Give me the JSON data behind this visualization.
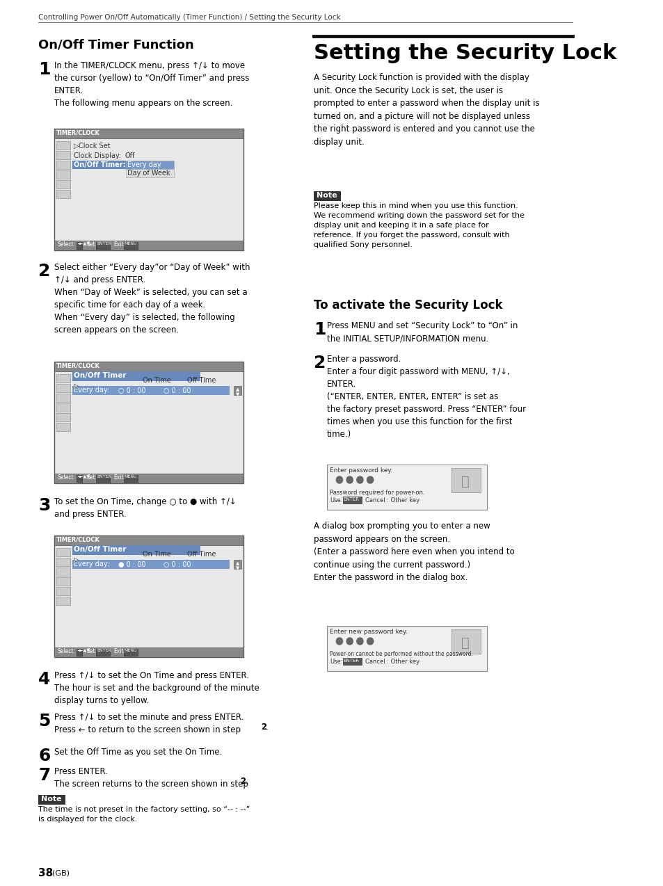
{
  "bg_color": "#ffffff",
  "text_color": "#000000",
  "header_text": "Controlling Power On/Off Automatically (Timer Function) / Setting the Security Lock",
  "left_title": "On/Off Timer Function",
  "right_title": "Setting the Security Lock",
  "page_number": "38",
  "page_suffix": "(GB)"
}
